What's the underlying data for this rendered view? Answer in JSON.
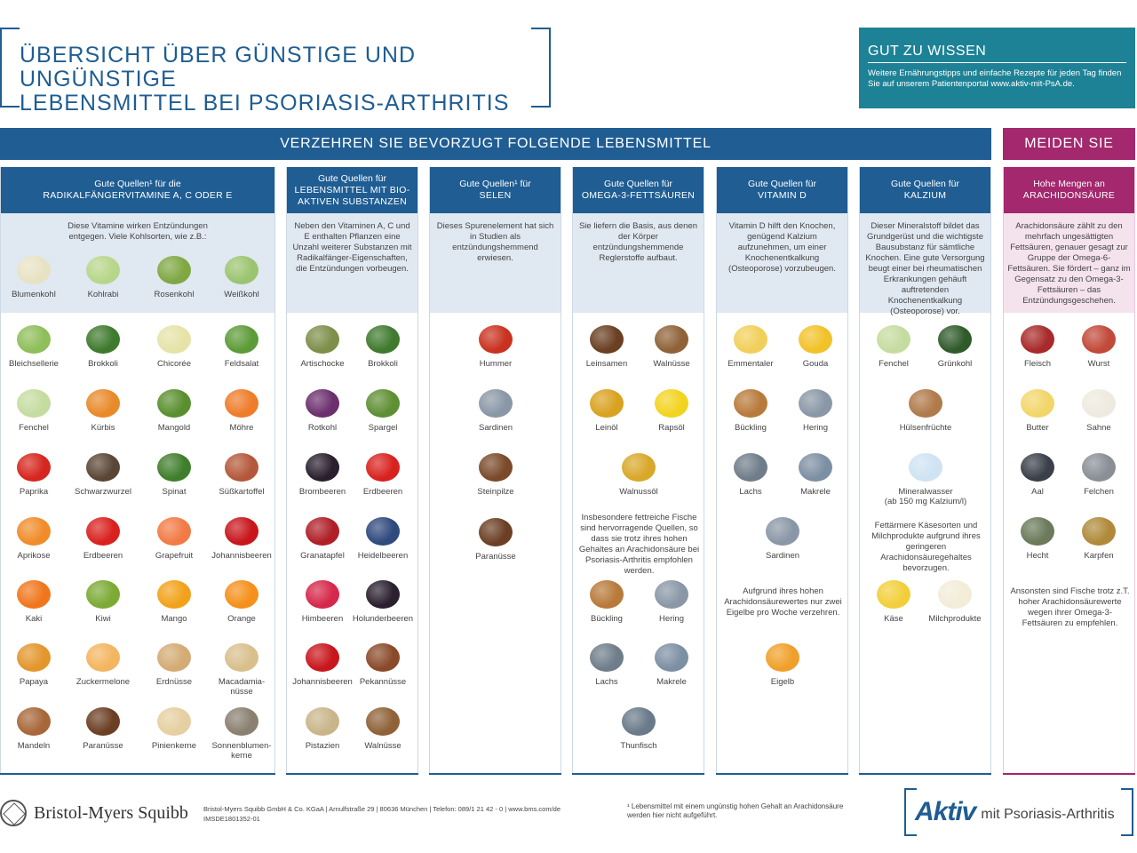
{
  "header": {
    "title_line1": "ÜBERSICHT ÜBER GÜNSTIGE UND UNGÜNSTIGE",
    "title_line2": "LEBENSMITTEL BEI PSORIASIS-ARTHRITIS"
  },
  "info": {
    "heading": "GUT ZU WISSEN",
    "text_line1": "Weitere Ernährungstipps und einfache Rezepte für jeden Tag finden",
    "text_line2": "Sie auf unserem Patientenportal www.aktiv-mit-PsA.de."
  },
  "banners": {
    "prefer": "VERZEHREN SIE BEVORZUGT FOLGENDE LEBENSMITTEL",
    "avoid": "MEIDEN SIE"
  },
  "columns": [
    {
      "head_sub": "Gute Quellen¹ für die",
      "head_main": "RADIKALFÄNGERVITAMINE A, C ODER E",
      "desc": "Diese Vitamine wirken Entzündungen entgegen. Viele Kohlsorten, wie z.B.:",
      "items": [
        {
          "label": "Blumenkohl",
          "color": "#e8e2c4"
        },
        {
          "label": "Kohlrabi",
          "color": "#b8d68a"
        },
        {
          "label": "Rosenkohl",
          "color": "#7fa843"
        },
        {
          "label": "Weißkohl",
          "color": "#9cc470"
        },
        {
          "label": "Bleichsellerie",
          "color": "#8fbe5a"
        },
        {
          "label": "Brokkoli",
          "color": "#3f7a2e"
        },
        {
          "label": "Chicorée",
          "color": "#e6e3a8"
        },
        {
          "label": "Feldsalat",
          "color": "#5d9b38"
        },
        {
          "label": "Fenchel",
          "color": "#c5dca0"
        },
        {
          "label": "Kürbis",
          "color": "#e88a2a"
        },
        {
          "label": "Mangold",
          "color": "#5a8f2f"
        },
        {
          "label": "Möhre",
          "color": "#ee7c2a"
        },
        {
          "label": "Paprika",
          "color": "#d6261e"
        },
        {
          "label": "Schwarzwurzel",
          "color": "#5a4636"
        },
        {
          "label": "Spinat",
          "color": "#3f7e2c"
        },
        {
          "label": "Süßkartoffel",
          "color": "#b4583a"
        },
        {
          "label": "Aprikose",
          "color": "#f08c2a"
        },
        {
          "label": "Erdbeeren",
          "color": "#d9221f"
        },
        {
          "label": "Grapefruit",
          "color": "#f27a45"
        },
        {
          "label": "Johannisbeeren",
          "color": "#c8161c"
        },
        {
          "label": "Kaki",
          "color": "#f0761c"
        },
        {
          "label": "Kiwi",
          "color": "#7caa35"
        },
        {
          "label": "Mango",
          "color": "#f2a21a"
        },
        {
          "label": "Orange",
          "color": "#f5901b"
        },
        {
          "label": "Papaya",
          "color": "#e3962c"
        },
        {
          "label": "Zuckermelone",
          "color": "#f3b55f"
        },
        {
          "label": "Erdnüsse",
          "color": "#d4ab74"
        },
        {
          "label": "Macadamia-nüsse",
          "color": "#d9bf8c"
        },
        {
          "label": "Mandeln",
          "color": "#a8673a"
        },
        {
          "label": "Paranüsse",
          "color": "#6b3f24"
        },
        {
          "label": "Pinienkerne",
          "color": "#e6cfa1"
        },
        {
          "label": "Sonnenblumen-kerne",
          "color": "#8a8070"
        }
      ]
    },
    {
      "head_sub": "Gute Quellen für",
      "head_main": "LEBENSMITTEL MIT BIO-AKTIVEN SUBSTANZEN",
      "desc": "Neben den Vitaminen A, C und E enthalten Pflanzen eine Unzahl weiterer Substanzen mit Radikalfänger-Eigenschaften, die Entzündungen vorbeugen.",
      "items": [
        {
          "label": "Artischocke",
          "color": "#7d8f4a"
        },
        {
          "label": "Brokkoli",
          "color": "#3f7a2e"
        },
        {
          "label": "Rotkohl",
          "color": "#6b2f6e"
        },
        {
          "label": "Spargel",
          "color": "#5f8f34"
        },
        {
          "label": "Brombeeren",
          "color": "#2a1f2e"
        },
        {
          "label": "Erdbeeren",
          "color": "#d9221f"
        },
        {
          "label": "Granatapfel",
          "color": "#b01f28"
        },
        {
          "label": "Heidelbeeren",
          "color": "#2f4a7d"
        },
        {
          "label": "Himbeeren",
          "color": "#d6284a"
        },
        {
          "label": "Holunderbeeren",
          "color": "#2b2030"
        },
        {
          "label": "Johannisbeeren",
          "color": "#c8161c"
        },
        {
          "label": "Pekannüsse",
          "color": "#8a4a2a"
        },
        {
          "label": "Pistazien",
          "color": "#c9b58a"
        },
        {
          "label": "Walnüsse",
          "color": "#8f6238"
        }
      ]
    },
    {
      "head_sub": "Gute Quellen¹ für",
      "head_main": "SELEN",
      "desc": "Dieses Spurenelement hat sich in Studien als entzündungshemmend erwiesen.",
      "items": [
        {
          "label": "Hummer",
          "color": "#c9321f"
        },
        {
          "label": "Sardinen",
          "color": "#8a97a6"
        },
        {
          "label": "Steinpilze",
          "color": "#7a4a2a"
        },
        {
          "label": "Paranüsse",
          "color": "#6b3f24"
        }
      ]
    },
    {
      "head_sub": "Gute Quellen für",
      "head_main": "OMEGA-3-FETTSÄUREN",
      "desc": "Sie liefern die Basis, aus denen der Körper entzündungshemmende Reglerstoffe aufbaut.",
      "items": [
        {
          "label": "Leinsamen",
          "color": "#6a3f22"
        },
        {
          "label": "Walnüsse",
          "color": "#8f6238"
        },
        {
          "label": "Leinöl",
          "color": "#d9a21f"
        },
        {
          "label": "Rapsöl",
          "color": "#f2d41f"
        },
        {
          "label": "Walnussöl",
          "color": "#d9a82a"
        },
        {
          "label": "Bückling",
          "color": "#b87a3a"
        },
        {
          "label": "Hering",
          "color": "#8a97a6"
        },
        {
          "label": "Lachs",
          "color": "#6f7d8a"
        },
        {
          "label": "Makrele",
          "color": "#7d8fa3"
        },
        {
          "label": "Thunfisch",
          "color": "#6a7a8a"
        }
      ],
      "note": "Insbesondere fettreiche Fische sind hervorragende Quellen, so dass sie trotz ihres hohen Gehaltes an Arachidonsäure bei Psoriasis-Arthritis empfohlen werden."
    },
    {
      "head_sub": "Gute Quellen für",
      "head_main": "VITAMIN D",
      "desc": "Vitamin D hilft den Knochen, genügend Kalzium aufzunehmen, um einer Knochenentkalkung (Osteoporose) vorzubeugen.",
      "items": [
        {
          "label": "Emmentaler",
          "color": "#f2cf5a"
        },
        {
          "label": "Gouda",
          "color": "#f2c22a"
        },
        {
          "label": "Bückling",
          "color": "#b87a3a"
        },
        {
          "label": "Hering",
          "color": "#8a97a6"
        },
        {
          "label": "Lachs",
          "color": "#6f7d8a"
        },
        {
          "label": "Makrele",
          "color": "#7d8fa3"
        },
        {
          "label": "Sardinen",
          "color": "#8a97a6"
        },
        {
          "label": "Eigelb",
          "color": "#f0a02a"
        }
      ],
      "note": "Aufgrund ihres hohen Arachidonsäurewertes nur zwei Eigelbe pro Woche verzehren."
    },
    {
      "head_sub": "Gute Quellen für",
      "head_main": "KALZIUM",
      "desc": "Dieser Mineralstoff bildet das Grundgerüst und die wichtigste Bausubstanz für sämtliche Knochen. Eine gute Versorgung beugt einer bei rheumatischen Erkrankungen gehäuft auftretenden Knochenentkalkung (Osteoporose) vor.",
      "items": [
        {
          "label": "Fenchel",
          "color": "#c5dca0"
        },
        {
          "label": "Grünkohl",
          "color": "#2f5a2a"
        },
        {
          "label": "Hülsenfrüchte",
          "color": "#b07a4a"
        },
        {
          "label": "Mineralwasser",
          "color": "#cfe3f2"
        },
        {
          "label": "Käse",
          "color": "#f2cf3a"
        },
        {
          "label": "Milchprodukte",
          "color": "#f2ecd8"
        }
      ],
      "mineral_sub": "(ab 150 mg Kalzium/l)",
      "note": "Fettärmere Käsesorten und Milchprodukte aufgrund ihres geringeren Arachidonsäuregehaltes bevorzugen."
    },
    {
      "head_sub": "Hohe Mengen an",
      "head_main": "ARACHIDONSÄURE",
      "desc": "Arachidonsäure zählt zu den mehrfach ungesättigten Fettsäuren, genauer gesagt zur Gruppe der Omega-6-Fettsäuren. Sie fördert – ganz im Gegensatz zu den Omega-3-Fettsäuren – das Entzündungsgeschehen.",
      "items": [
        {
          "label": "Fleisch",
          "color": "#a82a2a"
        },
        {
          "label": "Wurst",
          "color": "#c14a3a"
        },
        {
          "label": "Butter",
          "color": "#f2d66a"
        },
        {
          "label": "Sahne",
          "color": "#eeeae0"
        },
        {
          "label": "Aal",
          "color": "#3a3f4a"
        },
        {
          "label": "Felchen",
          "color": "#8a8f96"
        },
        {
          "label": "Hecht",
          "color": "#6a7a5a"
        },
        {
          "label": "Karpfen",
          "color": "#b08a3a"
        }
      ],
      "note": "Ansonsten sind Fische trotz z.T. hoher Arachidonsäurewerte wegen ihrer Omega-3-Fettsäuren zu empfehlen."
    }
  ],
  "footer": {
    "company": "Bristol-Myers Squibb",
    "address_line1": "Bristol-Myers Squibb GmbH & Co. KGaA | Arnulfstraße 29 | 80636 München | Telefon: 089/1 21 42 - 0 | www.bms.com/de",
    "address_line2": "IMSDE1801352-01",
    "footnote_line1": "¹ Lebensmittel mit einem ungünstig hohen Gehalt an Arachidonsäure",
    "footnote_line2": "werden hier nicht aufgeführt.",
    "logo_aktiv": "Aktiv",
    "logo_rest": "mit Psoriasis-Arthritis"
  }
}
